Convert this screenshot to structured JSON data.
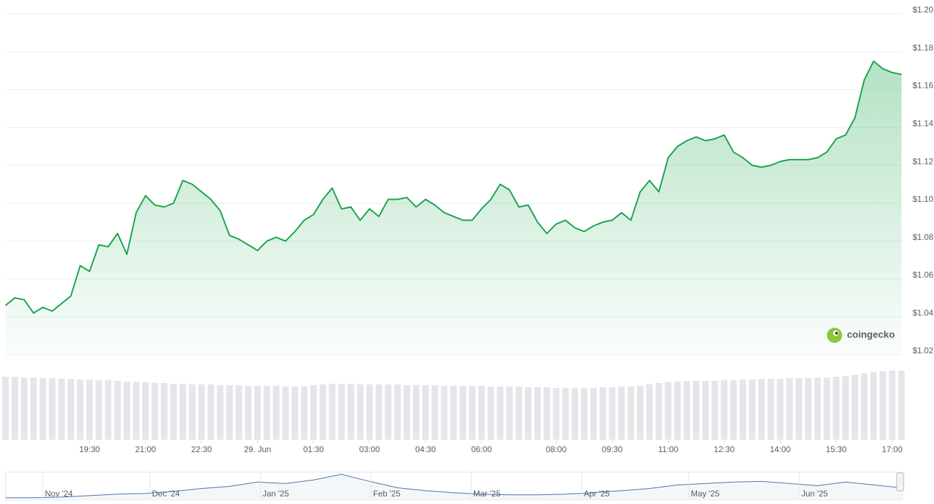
{
  "chart_data": {
    "type": "line",
    "x": [
      17.25,
      17.5,
      17.75,
      18,
      18.25,
      18.5,
      18.75,
      19,
      19.25,
      19.5,
      19.75,
      20,
      20.25,
      20.5,
      20.75,
      21,
      21.25,
      21.5,
      21.75,
      22,
      22.25,
      22.5,
      22.75,
      23,
      23.25,
      23.5,
      23.75,
      24,
      24.25,
      24.5,
      24.75,
      25,
      25.25,
      25.5,
      25.75,
      26,
      26.25,
      26.5,
      26.75,
      27,
      27.25,
      27.5,
      27.75,
      28,
      28.25,
      28.5,
      28.75,
      29,
      29.25,
      29.5,
      29.75,
      30,
      30.25,
      30.5,
      30.75,
      31,
      31.25,
      31.5,
      31.75,
      32,
      32.25,
      32.5,
      32.75,
      33,
      33.25,
      33.5,
      33.75,
      34,
      34.25,
      34.5,
      34.75,
      35,
      35.25,
      35.5,
      35.75,
      36,
      36.25,
      36.5,
      36.75,
      37,
      37.25,
      37.5,
      37.75,
      38,
      38.25,
      38.5,
      38.75,
      39,
      39.25,
      39.5,
      39.75,
      40,
      40.25,
      40.5,
      40.75,
      41,
      41.25
    ],
    "series": [
      {
        "name": "Price",
        "color": "#16a34a",
        "values": [
          1.046,
          1.05,
          1.049,
          1.042,
          1.045,
          1.043,
          1.047,
          1.051,
          1.067,
          1.064,
          1.078,
          1.077,
          1.084,
          1.073,
          1.095,
          1.104,
          1.099,
          1.098,
          1.1,
          1.112,
          1.11,
          1.106,
          1.102,
          1.096,
          1.083,
          1.081,
          1.078,
          1.075,
          1.08,
          1.082,
          1.08,
          1.085,
          1.091,
          1.094,
          1.102,
          1.108,
          1.097,
          1.098,
          1.091,
          1.097,
          1.093,
          1.102,
          1.102,
          1.103,
          1.098,
          1.102,
          1.099,
          1.095,
          1.093,
          1.091,
          1.091,
          1.097,
          1.102,
          1.11,
          1.107,
          1.098,
          1.099,
          1.09,
          1.084,
          1.089,
          1.091,
          1.087,
          1.085,
          1.088,
          1.09,
          1.091,
          1.095,
          1.091,
          1.106,
          1.112,
          1.106,
          1.124,
          1.13,
          1.133,
          1.135,
          1.133,
          1.134,
          1.136,
          1.127,
          1.124,
          1.12,
          1.119,
          1.12,
          1.122,
          1.123,
          1.123,
          1.123,
          1.124,
          1.127,
          1.134,
          1.136,
          1.145,
          1.165,
          1.175,
          1.171,
          1.169,
          1.168
        ]
      }
    ],
    "volume": {
      "color": "#e4e6ea",
      "values": [
        91,
        91,
        90,
        90,
        89,
        89,
        88,
        88,
        87,
        87,
        86,
        86,
        85,
        84,
        84,
        83,
        82,
        82,
        81,
        81,
        80,
        80,
        80,
        79,
        79,
        79,
        78,
        78,
        78,
        78,
        77,
        77,
        77,
        79,
        80,
        81,
        81,
        81,
        80,
        80,
        80,
        80,
        80,
        79,
        79,
        79,
        79,
        78,
        78,
        78,
        78,
        78,
        77,
        77,
        77,
        77,
        76,
        76,
        76,
        75,
        75,
        75,
        75,
        75,
        76,
        76,
        77,
        77,
        78,
        80,
        82,
        84,
        84,
        85,
        85,
        85,
        85,
        86,
        86,
        87,
        87,
        88,
        88,
        88,
        89,
        89,
        89,
        90,
        90,
        91,
        92,
        94,
        96,
        98,
        99,
        100,
        100
      ]
    },
    "xlim": [
      17.25,
      41.25
    ],
    "xticks": [
      {
        "value": 19.5,
        "label": "19:30"
      },
      {
        "value": 21,
        "label": "21:00"
      },
      {
        "value": 22.5,
        "label": "22:30"
      },
      {
        "value": 24,
        "label": "29. Jun"
      },
      {
        "value": 25.5,
        "label": "01:30"
      },
      {
        "value": 27,
        "label": "03:00"
      },
      {
        "value": 28.5,
        "label": "04:30"
      },
      {
        "value": 30,
        "label": "06:00"
      },
      {
        "value": 32,
        "label": "08:00"
      },
      {
        "value": 33.5,
        "label": "09:30"
      },
      {
        "value": 35,
        "label": "11:00"
      },
      {
        "value": 36.5,
        "label": "12:30"
      },
      {
        "value": 38,
        "label": "14:00"
      },
      {
        "value": 39.5,
        "label": "15:30"
      },
      {
        "value": 41,
        "label": "17:00"
      }
    ],
    "ylim": [
      1.02,
      1.2
    ],
    "yticks": [
      {
        "value": 1.02,
        "label": "$1.02"
      },
      {
        "value": 1.04,
        "label": "$1.04"
      },
      {
        "value": 1.06,
        "label": "$1.06"
      },
      {
        "value": 1.08,
        "label": "$1.08"
      },
      {
        "value": 1.1,
        "label": "$1.10"
      },
      {
        "value": 1.12,
        "label": "$1.12"
      },
      {
        "value": 1.14,
        "label": "$1.14"
      },
      {
        "value": 1.16,
        "label": "$1.16"
      },
      {
        "value": 1.18,
        "label": "$1.18"
      },
      {
        "value": 1.2,
        "label": "$1.20"
      }
    ],
    "grid": true,
    "watermark": "coingecko",
    "navigator": {
      "color": "#4a6fa5",
      "labels": [
        "Nov '24",
        "Dec '24",
        "Jan '25",
        "Feb '25",
        "Mar '25",
        "Apr '25",
        "May '25",
        "Jun '25"
      ],
      "values": [
        2,
        2,
        3,
        5,
        7,
        8,
        11,
        15,
        18,
        24,
        22,
        27,
        35,
        25,
        16,
        12,
        9,
        7,
        6,
        6,
        7,
        9,
        12,
        15,
        20,
        22,
        24,
        25,
        22,
        19,
        24,
        20,
        16
      ]
    }
  }
}
